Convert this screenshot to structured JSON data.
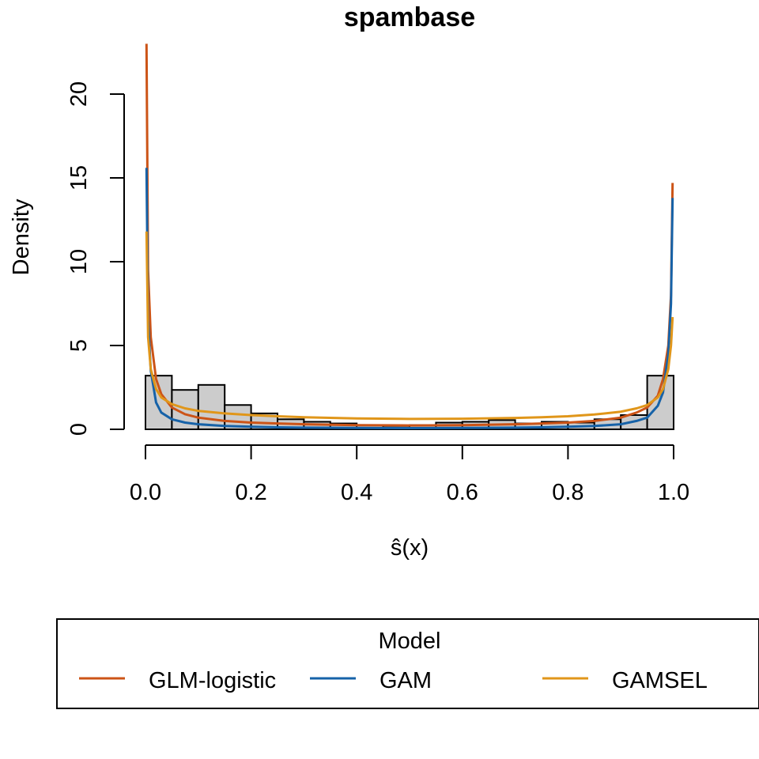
{
  "chart_data": {
    "type": "histogram",
    "title": "spambase",
    "xlabel": "ŝ(x)",
    "ylabel": "Density",
    "xlim": [
      0,
      1
    ],
    "ylim": [
      0,
      22
    ],
    "x_ticks": [
      "0.0",
      "0.2",
      "0.4",
      "0.6",
      "0.8",
      "1.0"
    ],
    "y_ticks": [
      "0",
      "5",
      "10",
      "15",
      "20"
    ],
    "grid": false,
    "histogram": {
      "bin_width": 0.05,
      "bins_start": [
        0.0,
        0.05,
        0.1,
        0.15,
        0.2,
        0.25,
        0.3,
        0.35,
        0.4,
        0.45,
        0.5,
        0.55,
        0.6,
        0.65,
        0.7,
        0.75,
        0.8,
        0.85,
        0.9,
        0.95
      ],
      "density": [
        3.2,
        2.35,
        2.65,
        1.45,
        0.95,
        0.6,
        0.45,
        0.35,
        0.25,
        0.2,
        0.25,
        0.4,
        0.45,
        0.55,
        0.35,
        0.45,
        0.4,
        0.6,
        0.85,
        3.2
      ],
      "fill": "#cccccc"
    },
    "series": [
      {
        "name": "GLM-logistic",
        "color": "#cc5417",
        "x": [
          0.002,
          0.005,
          0.01,
          0.02,
          0.03,
          0.05,
          0.075,
          0.1,
          0.15,
          0.2,
          0.25,
          0.3,
          0.4,
          0.5,
          0.6,
          0.7,
          0.75,
          0.8,
          0.85,
          0.9,
          0.93,
          0.95,
          0.97,
          0.98,
          0.99,
          0.995,
          0.998
        ],
        "y": [
          23.0,
          9.5,
          5.5,
          3.0,
          2.1,
          1.3,
          0.9,
          0.7,
          0.5,
          0.4,
          0.35,
          0.3,
          0.25,
          0.23,
          0.25,
          0.3,
          0.35,
          0.4,
          0.5,
          0.7,
          1.0,
          1.3,
          2.0,
          3.0,
          5.0,
          8.0,
          14.7
        ]
      },
      {
        "name": "GAM",
        "color": "#1662a8",
        "x": [
          0.002,
          0.005,
          0.01,
          0.02,
          0.03,
          0.05,
          0.075,
          0.1,
          0.15,
          0.2,
          0.25,
          0.3,
          0.4,
          0.5,
          0.6,
          0.7,
          0.75,
          0.8,
          0.85,
          0.9,
          0.93,
          0.95,
          0.97,
          0.98,
          0.99,
          0.995,
          0.998
        ],
        "y": [
          15.6,
          6.5,
          3.5,
          1.6,
          1.0,
          0.6,
          0.4,
          0.3,
          0.2,
          0.15,
          0.12,
          0.1,
          0.08,
          0.07,
          0.08,
          0.1,
          0.12,
          0.15,
          0.2,
          0.3,
          0.5,
          0.7,
          1.4,
          2.2,
          4.5,
          7.5,
          13.8
        ]
      },
      {
        "name": "GAMSEL",
        "color": "#e0961a",
        "x": [
          0.002,
          0.005,
          0.01,
          0.02,
          0.03,
          0.05,
          0.075,
          0.1,
          0.15,
          0.2,
          0.25,
          0.3,
          0.4,
          0.5,
          0.6,
          0.7,
          0.75,
          0.8,
          0.85,
          0.9,
          0.93,
          0.95,
          0.97,
          0.98,
          0.99,
          0.995,
          0.998
        ],
        "y": [
          11.8,
          5.5,
          3.6,
          2.4,
          1.9,
          1.5,
          1.25,
          1.1,
          0.95,
          0.85,
          0.78,
          0.72,
          0.65,
          0.62,
          0.63,
          0.68,
          0.72,
          0.78,
          0.88,
          1.05,
          1.25,
          1.45,
          1.9,
          2.4,
          3.6,
          5.0,
          6.7
        ]
      }
    ],
    "legend": {
      "title": "Model",
      "placement": "bottom",
      "labels": [
        "GLM-logistic",
        "GAM",
        "GAMSEL"
      ]
    }
  }
}
